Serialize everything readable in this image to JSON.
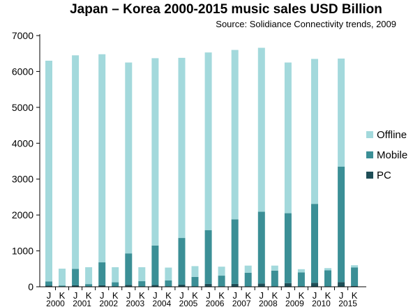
{
  "chart_data": {
    "type": "bar",
    "stacked": true,
    "title": "Japan – Korea 2000-2015 music sales USD Billion",
    "subtitle": "Source: Solidiance Connectivity trends, 2009",
    "xlabel": "",
    "ylabel": "",
    "ylim": [
      0,
      7000
    ],
    "yticks": [
      0,
      1000,
      2000,
      3000,
      4000,
      5000,
      6000,
      7000
    ],
    "grid": false,
    "legend_position": "right",
    "categories": [
      "J",
      "K",
      "J",
      "K",
      "J",
      "K",
      "J",
      "K",
      "J",
      "K",
      "J",
      "K",
      "J",
      "K",
      "J",
      "K",
      "J",
      "K",
      "J",
      "K",
      "J",
      "K",
      "J",
      "K"
    ],
    "years": [
      "2000",
      "2001",
      "2002",
      "2003",
      "2004",
      "2005",
      "2006",
      "2007",
      "2008",
      "2009",
      "2010",
      "2015"
    ],
    "series": [
      {
        "name": "PC",
        "color": "#1f4e57",
        "values": [
          30,
          5,
          40,
          5,
          40,
          5,
          50,
          5,
          50,
          5,
          60,
          5,
          80,
          10,
          80,
          10,
          90,
          10,
          100,
          10,
          110,
          10,
          130,
          20
        ]
      },
      {
        "name": "Mobile",
        "color": "#3b8f96",
        "values": [
          120,
          30,
          460,
          70,
          640,
          120,
          880,
          150,
          1100,
          170,
          1300,
          270,
          1500,
          300,
          1800,
          380,
          2000,
          440,
          1950,
          390,
          2200,
          450,
          3220,
          520
        ]
      },
      {
        "name": "Offline",
        "color": "#a3d9dc",
        "values": [
          6150,
          470,
          5950,
          470,
          5800,
          420,
          5320,
          390,
          5220,
          360,
          5020,
          300,
          4950,
          250,
          4720,
          200,
          4570,
          140,
          4200,
          90,
          4040,
          60,
          3010,
          60
        ]
      }
    ]
  }
}
